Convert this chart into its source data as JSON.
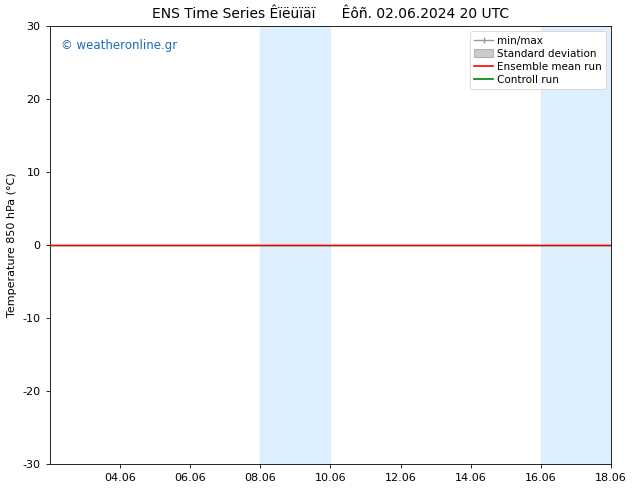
{
  "title": "ENS Time Series Êïëüïäï      Êôñ. 02.06.2024 20 UTC",
  "ylabel": "Temperature 850 hPa (°C)",
  "watermark": "© weatheronline.gr",
  "watermark_color": "#1a6bb5",
  "ylim": [
    -30,
    30
  ],
  "yticks": [
    -30,
    -20,
    -10,
    0,
    10,
    20,
    30
  ],
  "x_min": 2,
  "x_max": 18,
  "xtick_labels": [
    "04.06",
    "06.06",
    "08.06",
    "10.06",
    "12.06",
    "14.06",
    "16.06",
    "18.06"
  ],
  "xtick_positions": [
    4,
    6,
    8,
    10,
    12,
    14,
    16,
    18
  ],
  "background_color": "#ffffff",
  "plot_bg_color": "#ffffff",
  "shaded_regions": [
    {
      "x_start": 8,
      "x_end": 10,
      "color": "#ddeeff"
    },
    {
      "x_start": 16,
      "x_end": 18,
      "color": "#ddeeff"
    }
  ],
  "horizontal_line_y": 0,
  "horizontal_line_color": "#000000",
  "control_run_y": 0.0,
  "control_run_color": "#008000",
  "ensemble_mean_color": "#ff0000",
  "title_fontsize": 10,
  "label_fontsize": 8,
  "tick_fontsize": 8,
  "legend_fontsize": 7.5
}
